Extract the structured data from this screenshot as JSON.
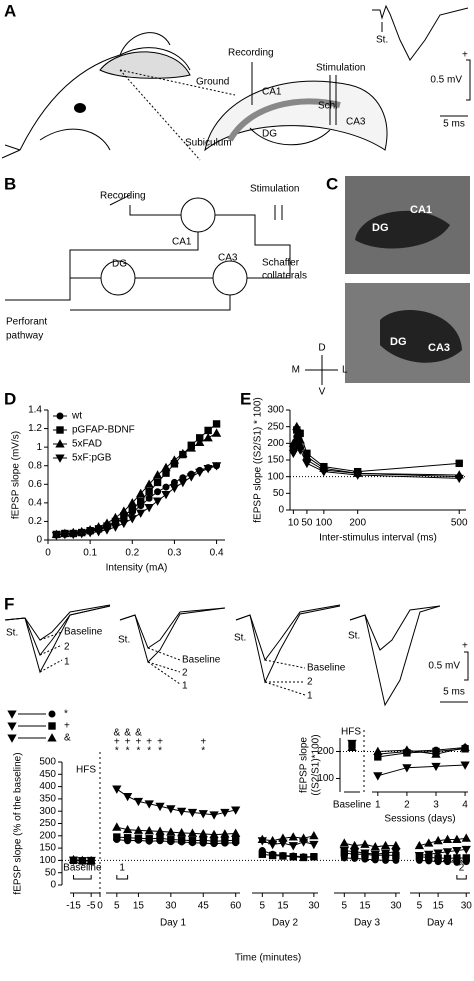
{
  "figure": {
    "a": {
      "label": "A",
      "recording": "Recording",
      "ground": "Ground",
      "stimulation": "Stimulation",
      "ca1": "CA1",
      "sch": "Sch.",
      "dg": "DG",
      "ca3": "CA3",
      "subiculum": "Subiculum",
      "st": "St.",
      "scale_v": "0.5 mV",
      "scale_t": "5 ms",
      "plus": "+"
    },
    "b": {
      "label": "B",
      "recording": "Recording",
      "stimulation": "Stimulation",
      "ca1": "CA1",
      "dg": "DG",
      "ca3": "CA3",
      "schaffer": [
        "Schaffer",
        "collaterals"
      ],
      "perforant": [
        "Perforant",
        "pathway"
      ]
    },
    "c": {
      "label": "C",
      "top": {
        "ca1": "CA1",
        "dg": "DG"
      },
      "bottom": {
        "dg": "DG",
        "ca3": "CA3"
      },
      "compass": [
        "D",
        "M",
        "L",
        "V"
      ]
    },
    "d": {
      "label": "D"
    },
    "e": {
      "label": "E"
    },
    "f": {
      "label": "F",
      "st": "St.",
      "trace_labels": [
        "Baseline",
        "2",
        "1"
      ],
      "scale_v": "0.5 mV",
      "scale_t": "5 ms",
      "plus": "+"
    }
  },
  "chart_data": [
    {
      "type": "line",
      "x_label": "Intensity (mA)",
      "y_label": "fEPSP slope (mV/s)",
      "x": [
        0.02,
        0.04,
        0.06,
        0.08,
        0.1,
        0.12,
        0.14,
        0.16,
        0.18,
        0.2,
        0.22,
        0.24,
        0.26,
        0.28,
        0.3,
        0.32,
        0.34,
        0.36,
        0.38,
        0.4
      ],
      "xlim": [
        0,
        0.42
      ],
      "xticks": [
        0,
        0.1,
        0.2,
        0.3,
        0.4
      ],
      "ylim": [
        0,
        1.4
      ],
      "yticks": [
        0,
        0.2,
        0.4,
        0.6,
        0.8,
        1,
        1.2,
        1.4
      ],
      "series": [
        {
          "name": "wt",
          "color": "#000000",
          "marker": "circle",
          "values": [
            0.06,
            0.06,
            0.07,
            0.08,
            0.09,
            0.11,
            0.14,
            0.18,
            0.23,
            0.3,
            0.37,
            0.45,
            0.52,
            0.57,
            0.62,
            0.67,
            0.71,
            0.75,
            0.78,
            0.8
          ]
        },
        {
          "name": "pGFAP-BDNF",
          "color": "#000000",
          "marker": "square",
          "values": [
            0.06,
            0.07,
            0.07,
            0.08,
            0.1,
            0.12,
            0.15,
            0.2,
            0.26,
            0.33,
            0.42,
            0.52,
            0.62,
            0.72,
            0.82,
            0.92,
            1.02,
            1.1,
            1.18,
            1.25
          ]
        },
        {
          "name": "5xFAD",
          "color": "#000000",
          "marker": "triangle",
          "values": [
            0.06,
            0.07,
            0.08,
            0.09,
            0.11,
            0.14,
            0.18,
            0.24,
            0.31,
            0.4,
            0.5,
            0.6,
            0.7,
            0.78,
            0.86,
            0.93,
            0.99,
            1.05,
            1.1,
            1.15
          ]
        },
        {
          "name": "5xF:pGB",
          "color": "#000000",
          "marker": "triangle-down",
          "values": [
            0.05,
            0.06,
            0.06,
            0.07,
            0.08,
            0.09,
            0.11,
            0.14,
            0.18,
            0.23,
            0.29,
            0.35,
            0.42,
            0.49,
            0.56,
            0.62,
            0.68,
            0.73,
            0.77,
            0.8
          ]
        }
      ]
    },
    {
      "type": "line",
      "x_label": "Inter-stimulus interval (ms)",
      "y_label": "fEPSP slope ((S2/S1) * 100)",
      "x": [
        10,
        20,
        30,
        50,
        100,
        200,
        500
      ],
      "xlim": [
        0,
        520
      ],
      "xticks": [
        10,
        50,
        100,
        200,
        500
      ],
      "ylim": [
        0,
        300
      ],
      "yticks": [
        0,
        50,
        100,
        150,
        200,
        250,
        300
      ],
      "reference_line": 100,
      "series": [
        {
          "color": "#000000",
          "marker": "circle",
          "values": [
            180,
            220,
            190,
            150,
            120,
            110,
            100
          ]
        },
        {
          "color": "#000000",
          "marker": "square",
          "values": [
            190,
            240,
            230,
            170,
            130,
            115,
            140
          ]
        },
        {
          "color": "#000000",
          "marker": "triangle",
          "values": [
            200,
            250,
            210,
            160,
            125,
            110,
            105
          ]
        },
        {
          "color": "#000000",
          "marker": "triangle-down",
          "values": [
            170,
            200,
            180,
            140,
            115,
            105,
            95
          ]
        }
      ]
    },
    {
      "type": "segmented-line",
      "x_label": "Time (minutes)",
      "y_label": "fEPSP slope (% of the baseline)",
      "ylim": [
        0,
        500
      ],
      "yticks": [
        0,
        50,
        100,
        150,
        200,
        250,
        300,
        350,
        400,
        450,
        500
      ],
      "reference_line": 100,
      "event": {
        "label": "HFS",
        "x": 0
      },
      "comparisons": [
        {
          "from": "triangle-down",
          "to": "circle",
          "label": "*"
        },
        {
          "from": "triangle-down",
          "to": "square",
          "label": "+"
        },
        {
          "from": "triangle-down",
          "to": "triangle",
          "label": "&"
        }
      ],
      "significance": [
        {
          "label": "&",
          "at": [
            5,
            10,
            15
          ]
        },
        {
          "label": "+",
          "at": [
            5,
            10,
            15,
            20,
            25,
            45
          ]
        },
        {
          "label": "*",
          "at": [
            5,
            10,
            15,
            20,
            25,
            45
          ]
        }
      ],
      "groups": [
        {
          "x": [
            -15,
            -10,
            -5
          ],
          "xlim": [
            -17,
            0
          ],
          "xticks": [
            -15,
            -5,
            0
          ],
          "bracket": {
            "label": "Baseline",
            "from": -15,
            "to": -5
          },
          "series": [
            {
              "marker": "circle",
              "values": [
                102,
                100,
                98
              ]
            },
            {
              "marker": "square",
              "values": [
                100,
                98,
                97
              ]
            },
            {
              "marker": "triangle",
              "values": [
                103,
                100,
                99
              ]
            },
            {
              "marker": "triangle-down",
              "values": [
                101,
                99,
                100
              ]
            }
          ]
        },
        {
          "name": "Day 1",
          "x": [
            5,
            10,
            15,
            20,
            25,
            30,
            35,
            40,
            45,
            50,
            55,
            60
          ],
          "xlim": [
            0,
            62
          ],
          "xticks": [
            5,
            15,
            30,
            45,
            60
          ],
          "bracket": {
            "label": "1",
            "from": 5,
            "to": 10
          },
          "series": [
            {
              "marker": "circle",
              "values": [
                185,
                180,
                182,
                178,
                180,
                176,
                175,
                172,
                170,
                168,
                170,
                172
              ]
            },
            {
              "marker": "square",
              "values": [
                195,
                192,
                190,
                188,
                190,
                185,
                183,
                180,
                182,
                178,
                180,
                182
              ]
            },
            {
              "marker": "triangle",
              "values": [
                235,
                225,
                222,
                220,
                218,
                215,
                212,
                210,
                208,
                205,
                207,
                210
              ]
            },
            {
              "marker": "triangle-down",
              "values": [
                390,
                360,
                340,
                330,
                320,
                310,
                300,
                295,
                290,
                285,
                295,
                305
              ]
            }
          ]
        },
        {
          "name": "Day 2",
          "x": [
            5,
            10,
            15,
            20,
            25,
            30
          ],
          "xlim": [
            0,
            32
          ],
          "xticks": [
            5,
            15,
            30
          ],
          "series": [
            {
              "marker": "circle",
              "values": [
                140,
                125,
                120,
                118,
                115,
                115
              ]
            },
            {
              "marker": "square",
              "values": [
                125,
                120,
                118,
                115,
                112,
                115
              ]
            },
            {
              "marker": "triangle",
              "values": [
                185,
                180,
                190,
                195,
                190,
                200
              ]
            },
            {
              "marker": "triangle-down",
              "values": [
                180,
                165,
                170,
                160,
                175,
                165
              ]
            }
          ]
        },
        {
          "name": "Day 3",
          "x": [
            5,
            10,
            15,
            20,
            25,
            30
          ],
          "xlim": [
            0,
            32
          ],
          "xticks": [
            5,
            15,
            30
          ],
          "series": [
            {
              "marker": "circle",
              "values": [
                110,
                108,
                105,
                102,
                100,
                100
              ]
            },
            {
              "marker": "square",
              "values": [
                130,
                125,
                125,
                120,
                122,
                120
              ]
            },
            {
              "marker": "triangle",
              "values": [
                170,
                160,
                165,
                155,
                160,
                160
              ]
            },
            {
              "marker": "triangle-down",
              "values": [
                140,
                135,
                130,
                125,
                130,
                135
              ]
            }
          ]
        },
        {
          "name": "Day 4",
          "x": [
            5,
            10,
            15,
            20,
            25,
            30
          ],
          "xlim": [
            0,
            32
          ],
          "xticks": [
            5,
            15,
            30
          ],
          "bracket": {
            "label": "2",
            "from": 25,
            "to": 30
          },
          "series": [
            {
              "marker": "circle",
              "values": [
                100,
                98,
                95,
                95,
                92,
                95
              ]
            },
            {
              "marker": "square",
              "values": [
                115,
                112,
                110,
                108,
                110,
                110
              ]
            },
            {
              "marker": "triangle",
              "values": [
                160,
                170,
                180,
                185,
                185,
                190
              ]
            },
            {
              "marker": "triangle-down",
              "values": [
                120,
                125,
                130,
                135,
                140,
                145
              ]
            }
          ]
        }
      ]
    },
    {
      "type": "inset-line",
      "x_label": "Sessions (days)",
      "y_label": [
        "fEPSP slope",
        "((S2/S1)*100)"
      ],
      "baseline_label": "Baseline",
      "event_label": "HFS",
      "x": [
        1,
        2,
        3,
        4
      ],
      "xlim": [
        0.8,
        4.1
      ],
      "xticks": [
        1,
        2,
        3,
        4
      ],
      "ylim": [
        50,
        250
      ],
      "yticks": [
        100,
        200
      ],
      "reference_line": 200,
      "series": [
        {
          "marker": "circle",
          "baseline": 220,
          "values": [
            190,
            200,
            205,
            215
          ]
        },
        {
          "marker": "square",
          "baseline": 225,
          "values": [
            180,
            195,
            200,
            210
          ]
        },
        {
          "marker": "triangle",
          "baseline": 215,
          "values": [
            200,
            205,
            190,
            215
          ]
        },
        {
          "marker": "triangle-down",
          "baseline": 230,
          "values": [
            110,
            140,
            145,
            150
          ]
        }
      ]
    }
  ]
}
